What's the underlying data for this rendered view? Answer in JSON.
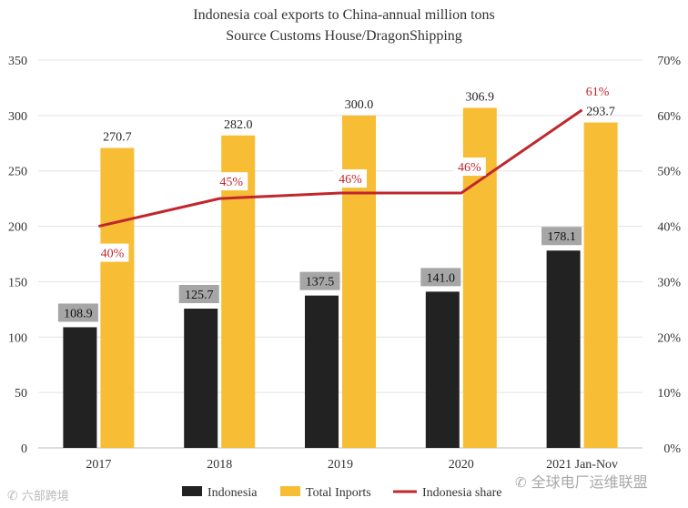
{
  "title_line1": "Indonesia coal exports to China-annual million tons",
  "title_line2": "Source Customs House/DragonShipping",
  "watermark_left": "六部跨境",
  "watermark_right": "全球电厂运维联盟",
  "chart_data": {
    "type": "bar",
    "categories": [
      "2017",
      "2018",
      "2019",
      "2020",
      "2021 Jan-Nov"
    ],
    "series": [
      {
        "name": "Indonesia",
        "values": [
          108.9,
          125.7,
          137.5,
          141.0,
          178.1
        ],
        "color": "#222222",
        "labels": [
          "108.9",
          "125.7",
          "137.5",
          "141.0",
          "178.1"
        ]
      },
      {
        "name": "Total Inports",
        "values": [
          270.7,
          282.0,
          300.0,
          306.9,
          293.7
        ],
        "color": "#f7bd35",
        "labels": [
          "270.7",
          "282.0",
          "300.0",
          "306.9",
          "293.7"
        ]
      },
      {
        "name": "Indonesia share",
        "type": "line",
        "axis": "right",
        "values": [
          40,
          45,
          46,
          46,
          61
        ],
        "color": "#c0272d",
        "labels": [
          "40%",
          "45%",
          "46%",
          "46%",
          "61%"
        ]
      }
    ],
    "ylim": [
      0,
      350
    ],
    "yticks": [
      "0",
      "50",
      "100",
      "150",
      "200",
      "250",
      "300",
      "350"
    ],
    "y2lim": [
      0,
      70
    ],
    "y2ticks": [
      "0%",
      "10%",
      "20%",
      "30%",
      "40%",
      "50%",
      "60%",
      "70%"
    ],
    "grid": true,
    "legend": "bottom"
  }
}
